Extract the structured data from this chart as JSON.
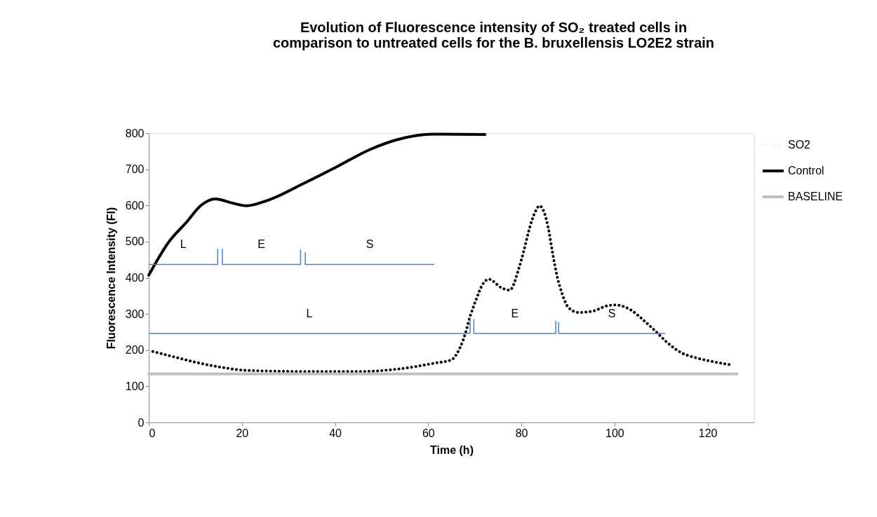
{
  "chart_data": {
    "type": "line",
    "title": "Evolution of Fluorescence intensity of SO₂ treated cells in comparison to untreated cells for the B. bruxellensis LO2E2 strain",
    "xlabel": "Time (h)",
    "ylabel": "Fluorescence Intensity (FI)",
    "xlim": [
      0,
      130
    ],
    "xticks": [
      0,
      20,
      40,
      60,
      80,
      100,
      120
    ],
    "ylim": [
      0,
      800
    ],
    "yticks": [
      0,
      100,
      200,
      300,
      400,
      500,
      600,
      700,
      800
    ],
    "grid": false,
    "legend": "top right",
    "marker": "none",
    "series": [
      {
        "name": "SO2",
        "color": "#000000",
        "line_style": "dotted",
        "x": [
          0,
          5.2,
          10.2,
          15.8,
          20.8,
          33.3,
          45.9,
          54.4,
          61.4,
          65,
          66.2,
          67.6,
          69.1,
          70.3,
          71.7,
          73,
          75.9,
          77.5,
          79.5,
          80.5,
          81.8,
          83,
          83.9,
          84.9,
          85.8,
          86.7,
          87.7,
          88.7,
          90.1,
          92.3,
          95.1,
          98.6,
          100.2,
          103.5,
          106.3,
          108.9,
          111.4,
          114.3,
          117.7,
          121.2,
          124.6
        ],
        "values": [
          199,
          182,
          166,
          152,
          144,
          141,
          141,
          149,
          164,
          173,
          191,
          231,
          297,
          340,
          382,
          396,
          371,
          366,
          427,
          473,
          539,
          583,
          599,
          581,
          537,
          469,
          403,
          358,
          318,
          304,
          307,
          323,
          325,
          311,
          282,
          251,
          220,
          193,
          178,
          168,
          160
        ]
      },
      {
        "name": "Control",
        "color": "#000000",
        "line_style": "solid",
        "x": [
          0,
          4.2,
          8.2,
          11.2,
          14.3,
          17.8,
          21,
          25.3,
          33.3,
          40.4,
          47.4,
          53.4,
          61,
          72.2
        ],
        "values": [
          407,
          497,
          555,
          600,
          618,
          607,
          599,
          613,
          661,
          707,
          754,
          782,
          797,
          796
        ]
      },
      {
        "name": "BASELINE",
        "color": "#bfbfbf",
        "line_style": "solid",
        "x": [
          0,
          126.3
        ],
        "values": [
          134,
          134
        ]
      },
      {
        "color": "#4f81bd",
        "line_style": "solid",
        "x": [
          0,
          14.8,
          14.8
        ],
        "values": [
          437,
          437,
          480
        ]
      },
      {
        "color": "#4f81bd",
        "line_style": "solid",
        "x": [
          15.8,
          15.8,
          32.6,
          32.6
        ],
        "values": [
          480,
          437,
          437,
          478
        ]
      },
      {
        "color": "#4f81bd",
        "line_style": "solid",
        "x": [
          33.6,
          33.6,
          61.3
        ],
        "values": [
          470,
          437,
          437
        ]
      },
      {
        "color": "#4f81bd",
        "line_style": "solid",
        "x": [
          0,
          69,
          69
        ],
        "values": [
          246,
          246,
          286
        ]
      },
      {
        "color": "#4f81bd",
        "line_style": "solid",
        "x": [
          69.8,
          69.8,
          87.4,
          87.4
        ],
        "values": [
          286,
          246,
          246,
          281
        ]
      },
      {
        "color": "#4f81bd",
        "line_style": "solid",
        "x": [
          88,
          88,
          110.9
        ],
        "values": [
          277,
          246,
          246
        ]
      }
    ],
    "annotations": [
      "L",
      "E",
      "S",
      "L",
      "E",
      "S"
    ]
  }
}
